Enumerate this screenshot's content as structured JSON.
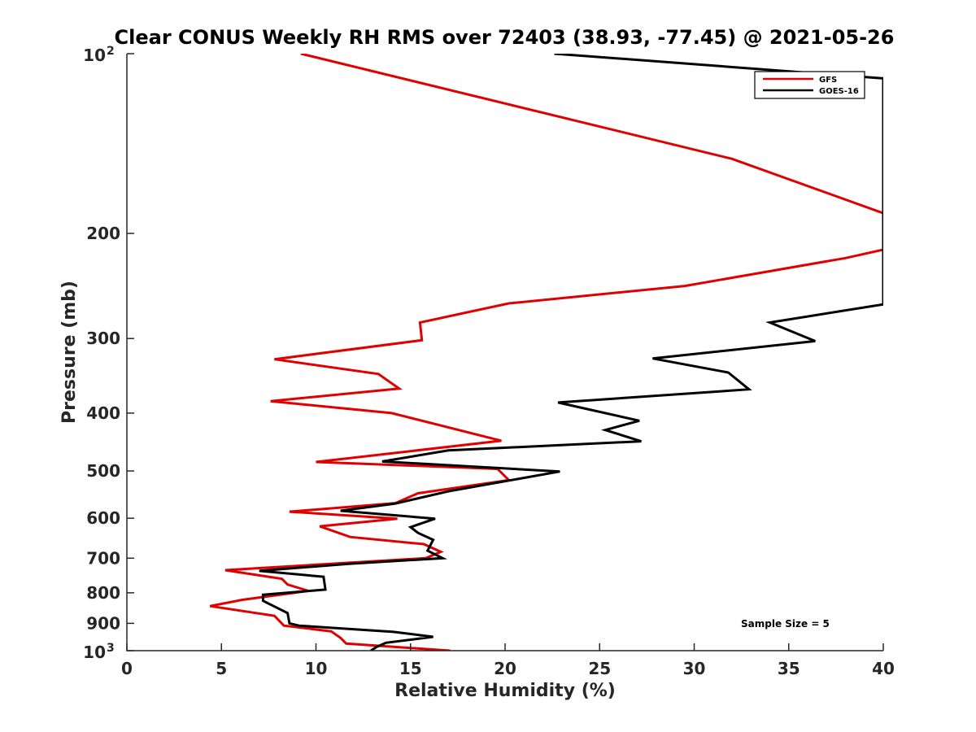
{
  "chart_data": {
    "type": "line",
    "title": "Clear CONUS Weekly RH RMS over 72403 (38.93, -77.45) @ 2021-05-26",
    "xlabel": "Relative Humidity (%)",
    "ylabel": "Pressure (mb)",
    "xlim": [
      0,
      40
    ],
    "ylim": [
      100,
      1000
    ],
    "y_scale": "log",
    "y_reversed": true,
    "x_ticks": [
      "0",
      "5",
      "10",
      "15",
      "20",
      "25",
      "30",
      "35",
      "40"
    ],
    "y_ticks": [
      {
        "value": 100,
        "label": "10",
        "sup": "2"
      },
      {
        "value": 200,
        "label": "200",
        "sup": ""
      },
      {
        "value": 300,
        "label": "300",
        "sup": ""
      },
      {
        "value": 400,
        "label": "400",
        "sup": ""
      },
      {
        "value": 500,
        "label": "500",
        "sup": ""
      },
      {
        "value": 600,
        "label": "600",
        "sup": ""
      },
      {
        "value": 700,
        "label": "700",
        "sup": ""
      },
      {
        "value": 800,
        "label": "800",
        "sup": ""
      },
      {
        "value": 900,
        "label": "900",
        "sup": ""
      },
      {
        "value": 1000,
        "label": "10",
        "sup": "3"
      }
    ],
    "legend_position": "top-right",
    "grid": false,
    "annotation": "Sample Size = 5",
    "series": [
      {
        "name": "GFS",
        "color": "#e00000",
        "points": [
          [
            9.2,
            100
          ],
          [
            32,
            150
          ],
          [
            40,
            185
          ],
          [
            40,
            213
          ],
          [
            38,
            220
          ],
          [
            29.5,
            245
          ],
          [
            20.2,
            262
          ],
          [
            15.5,
            282
          ],
          [
            15.6,
            302
          ],
          [
            7.8,
            325
          ],
          [
            13.3,
            344
          ],
          [
            14.4,
            364
          ],
          [
            7.6,
            382
          ],
          [
            14,
            400
          ],
          [
            19.8,
            445
          ],
          [
            10,
            483
          ],
          [
            19.6,
            496
          ],
          [
            20.2,
            518
          ],
          [
            15.4,
            545
          ],
          [
            14.2,
            566
          ],
          [
            8.6,
            585
          ],
          [
            14.3,
            601
          ],
          [
            10.2,
            619
          ],
          [
            11.8,
            645
          ],
          [
            15.7,
            663
          ],
          [
            16.6,
            683
          ],
          [
            15.8,
            700
          ],
          [
            5.2,
            733
          ],
          [
            8.2,
            758
          ],
          [
            8.5,
            775
          ],
          [
            9.6,
            794
          ],
          [
            6.1,
            822
          ],
          [
            4.4,
            842
          ],
          [
            7.8,
            874
          ],
          [
            8.3,
            908
          ],
          [
            10.8,
            928
          ],
          [
            11.3,
            952
          ],
          [
            11.6,
            973
          ],
          [
            17.1,
            1000
          ]
        ]
      },
      {
        "name": "GOES-16",
        "color": "#000000",
        "points": [
          [
            22.6,
            100
          ],
          [
            40,
            110
          ],
          [
            40,
            263
          ],
          [
            34,
            282
          ],
          [
            36.4,
            303
          ],
          [
            27.8,
            324
          ],
          [
            31.8,
            342
          ],
          [
            32.9,
            365
          ],
          [
            22.8,
            384
          ],
          [
            27.1,
            412
          ],
          [
            25.3,
            427
          ],
          [
            27.2,
            446
          ],
          [
            17,
            462
          ],
          [
            13.5,
            482
          ],
          [
            22.9,
            501
          ],
          [
            17.1,
            540
          ],
          [
            14.2,
            567
          ],
          [
            11.3,
            583
          ],
          [
            16.3,
            601
          ],
          [
            15,
            621
          ],
          [
            15.4,
            635
          ],
          [
            16.2,
            652
          ],
          [
            15.9,
            680
          ],
          [
            16.7,
            700
          ],
          [
            11.8,
            715
          ],
          [
            7,
            735
          ],
          [
            10.4,
            752
          ],
          [
            10.5,
            790
          ],
          [
            7.2,
            806
          ],
          [
            7.2,
            825
          ],
          [
            8.5,
            865
          ],
          [
            8.6,
            900
          ],
          [
            9.1,
            908
          ],
          [
            14.1,
            930
          ],
          [
            16.2,
            948
          ],
          [
            13.7,
            970
          ],
          [
            13.2,
            986
          ],
          [
            12.9,
            1000
          ]
        ]
      }
    ]
  }
}
